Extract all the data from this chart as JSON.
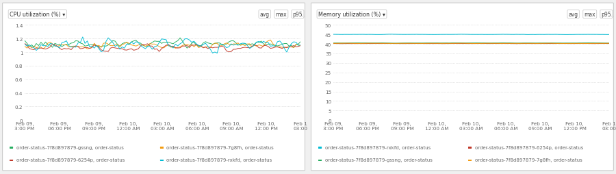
{
  "cpu_title": "CPU utilization (%) ▾",
  "mem_title": "Memory utilization (%) ▾",
  "controls": [
    "avg",
    "max",
    "p95",
    "..."
  ],
  "x_labels": [
    "Feb 09,\n3:00 PM",
    "Feb 09,\n06:00 PM",
    "Feb 09,\n09:00 PM",
    "Feb 10,\n12:00 AM",
    "Feb 10,\n03:00 AM",
    "Feb 10,\n06:00 AM",
    "Feb 10,\n09:00 AM",
    "Feb 10,\n12:00 PM",
    "Feb 1\n03:00"
  ],
  "cpu_ylim": [
    0,
    1.4
  ],
  "cpu_yticks": [
    0,
    0.2,
    0.4,
    0.6,
    0.8,
    1.0,
    1.2,
    1.4
  ],
  "mem_ylim": [
    0,
    50
  ],
  "mem_yticks": [
    0,
    5,
    10,
    15,
    20,
    25,
    30,
    35,
    40,
    45,
    50
  ],
  "cpu_legend": [
    {
      "color": "#27ae60",
      "label": "order-status-7f8d897879-gssng, order-status"
    },
    {
      "color": "#f39c12",
      "label": "order-status-7f8d897879-7g8fh, order-status"
    },
    {
      "color": "#c0392b",
      "label": "order-status-7f8d897879-6254p, order-status"
    },
    {
      "color": "#00bcd4",
      "label": "order-status-7f8d897879-rxkfd, order-status"
    }
  ],
  "mem_legend": [
    {
      "color": "#00bcd4",
      "label": "order-status-7f8d897879-rxkfd, order-status"
    },
    {
      "color": "#c0392b",
      "label": "order-status-7f8d897879-6254p, order-status"
    },
    {
      "color": "#27ae60",
      "label": "order-status-7f8d897879-gssng, order-status"
    },
    {
      "color": "#f39c12",
      "label": "order-status-7f8d897879-7g8fh, order-status"
    }
  ],
  "cpu_series": [
    {
      "color": "#27ae60",
      "base": 1.12,
      "noise": 0.055,
      "seed": 1
    },
    {
      "color": "#f39c12",
      "base": 1.1,
      "noise": 0.048,
      "seed": 2
    },
    {
      "color": "#c0392b",
      "base": 1.07,
      "noise": 0.042,
      "seed": 3
    },
    {
      "color": "#00bcd4",
      "base": 1.1,
      "noise": 0.085,
      "seed": 4
    }
  ],
  "mem_series": [
    {
      "color": "#00bcd4",
      "base": 45.0,
      "noise": 0.08,
      "seed": 10
    },
    {
      "color": "#c0392b",
      "base": 40.2,
      "noise": 0.06,
      "seed": 11
    },
    {
      "color": "#27ae60",
      "base": 40.5,
      "noise": 0.06,
      "seed": 12
    },
    {
      "color": "#f39c12",
      "base": 40.3,
      "noise": 0.08,
      "seed": 13
    }
  ],
  "bg_color": "#f0f0f0",
  "panel_bg": "#ffffff",
  "grid_color": "#cccccc",
  "label_color": "#666666",
  "title_color": "#333333",
  "n_points": 120,
  "legend_fontsize": 5.0,
  "tick_fontsize": 5.2,
  "title_fontsize": 5.8,
  "ctrl_fontsize": 5.5
}
